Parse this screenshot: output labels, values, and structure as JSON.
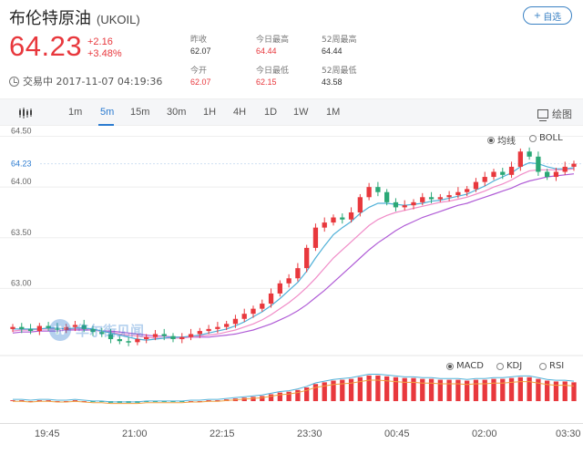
{
  "header": {
    "name": "布伦特原油",
    "code": "(UKOIL)",
    "add_label": "自选",
    "price": "64.23",
    "change": "+2.16",
    "change_pct": "+3.48%",
    "status": "交易中 2017-11-07 04:19:36"
  },
  "stats": [
    {
      "label": "昨收",
      "value": "62.07",
      "color": "normal"
    },
    {
      "label": "今日最高",
      "value": "64.44",
      "color": "red"
    },
    {
      "label": "52周最高",
      "value": "64.44",
      "color": "normal"
    },
    {
      "label": "今开",
      "value": "62.07",
      "color": "red"
    },
    {
      "label": "今日最低",
      "value": "62.15",
      "color": "red"
    },
    {
      "label": "52周最低",
      "value": "43.58",
      "color": "normal"
    }
  ],
  "toolbar": {
    "intervals": [
      "1m",
      "5m",
      "15m",
      "30m",
      "1H",
      "4H",
      "1D",
      "1W",
      "1M"
    ],
    "active": "5m",
    "draw_label": "绘图"
  },
  "overlay_options": [
    {
      "label": "均线",
      "selected": true
    },
    {
      "label": "BOLL",
      "selected": false
    }
  ],
  "indicator_options": [
    {
      "label": "MACD",
      "selected": true
    },
    {
      "label": "KDJ",
      "selected": false
    },
    {
      "label": "RSI",
      "selected": false
    }
  ],
  "watermark": "华尔街见闻",
  "watermark_logo": "W",
  "colors": {
    "up": "#e8383d",
    "down": "#2aa876",
    "accent": "#2b7bd0"
  },
  "chart_data": {
    "type": "candlestick",
    "y_ticks": [
      "64.50",
      "64.00",
      "63.50",
      "63.00"
    ],
    "current_price_label": "64.23",
    "ylim": [
      62.5,
      64.55
    ],
    "x_ticks": [
      "19:45",
      "21:00",
      "22:15",
      "23:30",
      "00:45",
      "02:00",
      "03:30"
    ],
    "closes": [
      62.62,
      62.6,
      62.58,
      62.63,
      62.61,
      62.59,
      62.62,
      62.64,
      62.6,
      62.57,
      62.55,
      62.5,
      62.48,
      62.47,
      62.5,
      62.52,
      62.55,
      62.53,
      62.5,
      62.52,
      62.55,
      62.58,
      62.6,
      62.62,
      62.65,
      62.7,
      62.75,
      62.8,
      62.85,
      62.95,
      63.05,
      63.1,
      63.2,
      63.4,
      63.6,
      63.65,
      63.7,
      63.68,
      63.75,
      63.9,
      64.0,
      63.95,
      63.85,
      63.8,
      63.82,
      63.85,
      63.9,
      63.88,
      63.9,
      63.92,
      63.95,
      63.98,
      64.05,
      64.1,
      64.15,
      64.12,
      64.2,
      64.35,
      64.3,
      64.15,
      64.1,
      64.15,
      64.2,
      64.23
    ],
    "ma_short": [
      62.6,
      62.6,
      62.6,
      62.6,
      62.61,
      62.61,
      62.6,
      62.61,
      62.61,
      62.6,
      62.58,
      62.56,
      62.54,
      62.52,
      62.5,
      62.49,
      62.5,
      62.51,
      62.52,
      62.52,
      62.53,
      62.54,
      62.56,
      62.58,
      62.6,
      62.63,
      62.67,
      62.72,
      62.77,
      62.83,
      62.9,
      62.98,
      63.06,
      63.17,
      63.3,
      63.42,
      63.53,
      63.6,
      63.66,
      63.74,
      63.8,
      63.84,
      63.84,
      63.83,
      63.82,
      63.83,
      63.84,
      63.86,
      63.87,
      63.89,
      63.91,
      63.93,
      63.97,
      64.01,
      64.06,
      64.1,
      64.14,
      64.2,
      64.24,
      64.23,
      64.2,
      64.18,
      64.18,
      64.19
    ],
    "ma_mid": [
      62.58,
      62.59,
      62.59,
      62.6,
      62.6,
      62.6,
      62.6,
      62.6,
      62.6,
      62.59,
      62.58,
      62.57,
      62.55,
      62.54,
      62.53,
      62.52,
      62.51,
      62.51,
      62.51,
      62.51,
      62.52,
      62.53,
      62.54,
      62.55,
      62.57,
      62.59,
      62.62,
      62.65,
      62.69,
      62.74,
      62.8,
      62.86,
      62.93,
      63.01,
      63.1,
      63.2,
      63.3,
      63.38,
      63.46,
      63.54,
      63.62,
      63.68,
      63.72,
      63.75,
      63.77,
      63.79,
      63.81,
      63.83,
      63.85,
      63.86,
      63.88,
      63.9,
      63.93,
      63.96,
      64.0,
      64.03,
      64.07,
      64.12,
      64.16,
      64.17,
      64.17,
      64.17,
      64.17,
      64.18
    ],
    "ma_long": [
      62.56,
      62.57,
      62.57,
      62.58,
      62.58,
      62.58,
      62.59,
      62.59,
      62.59,
      62.59,
      62.58,
      62.58,
      62.57,
      62.56,
      62.55,
      62.54,
      62.53,
      62.53,
      62.52,
      62.52,
      62.52,
      62.52,
      62.52,
      62.53,
      62.54,
      62.55,
      62.57,
      62.59,
      62.62,
      62.65,
      62.69,
      62.73,
      62.78,
      62.84,
      62.91,
      62.98,
      63.06,
      63.14,
      63.22,
      63.3,
      63.38,
      63.45,
      63.51,
      63.57,
      63.62,
      63.66,
      63.7,
      63.73,
      63.76,
      63.79,
      63.82,
      63.84,
      63.87,
      63.9,
      63.93,
      63.96,
      63.99,
      64.03,
      64.06,
      64.08,
      64.1,
      64.11,
      64.12,
      64.13
    ],
    "macd_hist": [
      0.01,
      0.01,
      0.0,
      0.01,
      0.01,
      0.0,
      0.0,
      0.01,
      0.0,
      -0.01,
      -0.01,
      -0.02,
      -0.02,
      -0.02,
      -0.02,
      -0.01,
      -0.01,
      -0.01,
      -0.01,
      -0.01,
      0.0,
      0.0,
      0.01,
      0.01,
      0.02,
      0.03,
      0.04,
      0.05,
      0.06,
      0.08,
      0.1,
      0.11,
      0.13,
      0.16,
      0.2,
      0.22,
      0.24,
      0.25,
      0.26,
      0.28,
      0.3,
      0.3,
      0.29,
      0.28,
      0.27,
      0.27,
      0.26,
      0.26,
      0.25,
      0.25,
      0.25,
      0.24,
      0.25,
      0.25,
      0.26,
      0.26,
      0.27,
      0.28,
      0.28,
      0.26,
      0.24,
      0.23,
      0.23,
      0.22
    ]
  }
}
